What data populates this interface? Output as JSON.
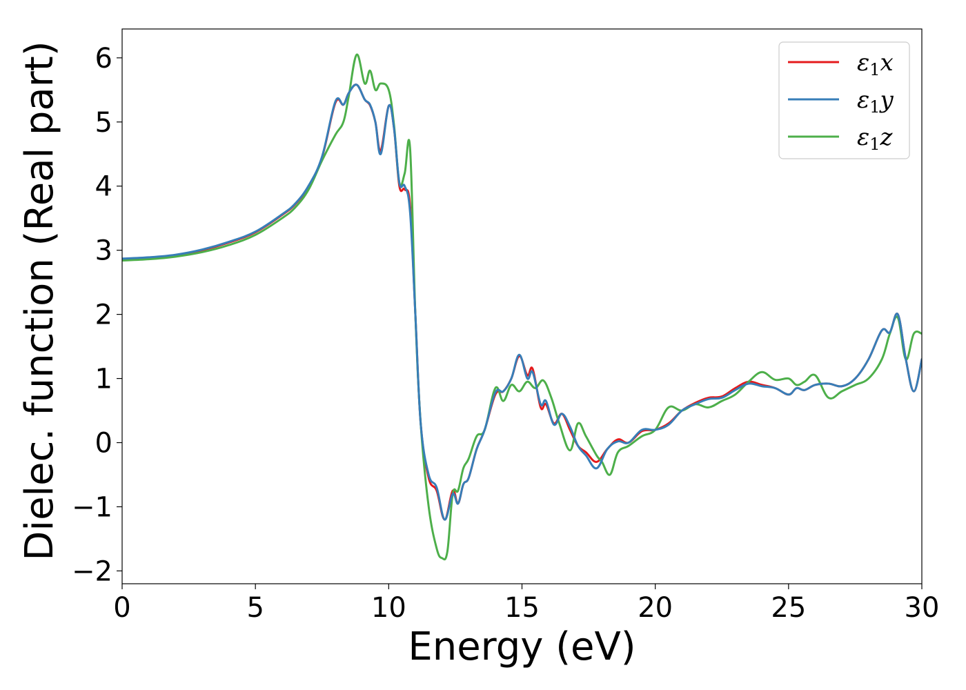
{
  "chart_data": {
    "type": "line",
    "xlabel": "Energy (eV)",
    "ylabel": "Dielec. function (Real part)",
    "xlim": [
      0,
      30
    ],
    "ylim": [
      -2.2,
      6.45
    ],
    "xticks": [
      0,
      5,
      10,
      15,
      20,
      25,
      30
    ],
    "xtick_labels": [
      "0",
      "5",
      "10",
      "15",
      "20",
      "25",
      "30"
    ],
    "yticks": [
      -2,
      -1,
      0,
      1,
      2,
      3,
      4,
      5,
      6
    ],
    "ytick_labels": [
      "−2",
      "−1",
      "0",
      "1",
      "2",
      "3",
      "4",
      "5",
      "6"
    ],
    "grid": false,
    "legend_position": "top-right",
    "series": [
      {
        "name": "ε₁x",
        "legend_base": "ε",
        "legend_sub": "1",
        "legend_var": "x",
        "color": "#e41a1c",
        "x": [
          0,
          1,
          2,
          3,
          4,
          5,
          6,
          6.5,
          7,
          7.5,
          8,
          8.3,
          8.5,
          8.8,
          9.1,
          9.3,
          9.5,
          9.7,
          10.0,
          10.2,
          10.4,
          10.6,
          10.8,
          11.0,
          11.2,
          11.5,
          11.8,
          12.1,
          12.4,
          12.6,
          12.8,
          13.0,
          13.3,
          13.6,
          14.0,
          14.3,
          14.6,
          14.9,
          15.2,
          15.4,
          15.7,
          15.9,
          16.2,
          16.5,
          16.8,
          17.1,
          17.4,
          17.8,
          18.2,
          18.6,
          19.0,
          19.5,
          20.0,
          20.5,
          21.0,
          21.5,
          22.0,
          22.5,
          23.0,
          23.5,
          24.0,
          24.5,
          25.0,
          25.3,
          25.6,
          26.0,
          26.5,
          27.0,
          27.5,
          28.0,
          28.5,
          28.8,
          29.1,
          29.4,
          29.7,
          30
        ],
        "y": [
          2.86,
          2.88,
          2.92,
          3.0,
          3.12,
          3.28,
          3.55,
          3.72,
          4.0,
          4.45,
          5.3,
          5.27,
          5.45,
          5.58,
          5.35,
          5.26,
          5.0,
          4.55,
          5.25,
          4.9,
          4.0,
          3.95,
          3.7,
          2.0,
          0.3,
          -0.55,
          -0.75,
          -1.2,
          -0.75,
          -0.95,
          -0.65,
          -0.55,
          -0.1,
          0.2,
          0.75,
          0.8,
          1.0,
          1.35,
          1.05,
          1.15,
          0.55,
          0.6,
          0.3,
          0.45,
          0.2,
          -0.05,
          -0.15,
          -0.3,
          -0.1,
          0.05,
          0.0,
          0.18,
          0.2,
          0.3,
          0.5,
          0.62,
          0.7,
          0.72,
          0.85,
          0.95,
          0.9,
          0.85,
          0.75,
          0.85,
          0.82,
          0.9,
          0.92,
          0.88,
          1.0,
          1.3,
          1.75,
          1.72,
          2.0,
          1.3,
          0.8,
          1.3
        ]
      },
      {
        "name": "ε₁y",
        "legend_base": "ε",
        "legend_sub": "1",
        "legend_var": "y",
        "color": "#377eb8",
        "x": [
          0,
          1,
          2,
          3,
          4,
          5,
          6,
          6.5,
          7,
          7.5,
          8,
          8.3,
          8.5,
          8.8,
          9.1,
          9.3,
          9.5,
          9.7,
          10.0,
          10.2,
          10.4,
          10.6,
          10.8,
          11.0,
          11.2,
          11.5,
          11.8,
          12.1,
          12.4,
          12.6,
          12.8,
          13.0,
          13.3,
          13.6,
          14.0,
          14.3,
          14.6,
          14.9,
          15.2,
          15.4,
          15.7,
          15.9,
          16.2,
          16.5,
          16.8,
          17.1,
          17.4,
          17.8,
          18.2,
          18.6,
          19.0,
          19.5,
          20.0,
          20.5,
          21.0,
          21.5,
          22.0,
          22.5,
          23.0,
          23.5,
          24.0,
          24.5,
          25.0,
          25.3,
          25.6,
          26.0,
          26.5,
          27.0,
          27.5,
          28.0,
          28.5,
          28.8,
          29.1,
          29.4,
          29.7,
          30
        ],
        "y": [
          2.87,
          2.89,
          2.93,
          3.01,
          3.13,
          3.29,
          3.56,
          3.73,
          4.01,
          4.46,
          5.32,
          5.27,
          5.45,
          5.58,
          5.35,
          5.27,
          5.0,
          4.5,
          5.25,
          4.9,
          4.05,
          4.0,
          3.6,
          2.0,
          0.3,
          -0.5,
          -0.7,
          -1.2,
          -0.8,
          -0.95,
          -0.65,
          -0.55,
          -0.1,
          0.2,
          0.78,
          0.8,
          1.0,
          1.37,
          1.0,
          1.1,
          0.6,
          0.65,
          0.28,
          0.45,
          0.25,
          -0.05,
          -0.2,
          -0.4,
          -0.1,
          0.02,
          0.0,
          0.2,
          0.2,
          0.28,
          0.5,
          0.6,
          0.68,
          0.7,
          0.82,
          0.92,
          0.88,
          0.85,
          0.75,
          0.85,
          0.82,
          0.9,
          0.92,
          0.88,
          1.0,
          1.3,
          1.75,
          1.72,
          2.0,
          1.3,
          0.8,
          1.3
        ]
      },
      {
        "name": "ε₁z",
        "legend_base": "ε",
        "legend_sub": "1",
        "legend_var": "z",
        "color": "#4daf4a",
        "x": [
          0,
          1,
          2,
          3,
          4,
          5,
          6,
          6.5,
          7,
          7.5,
          8,
          8.3,
          8.5,
          8.8,
          9.1,
          9.3,
          9.5,
          9.7,
          10.0,
          10.2,
          10.4,
          10.6,
          10.8,
          11.0,
          11.2,
          11.5,
          11.8,
          12.0,
          12.2,
          12.4,
          12.6,
          12.8,
          13.0,
          13.3,
          13.6,
          14.0,
          14.3,
          14.6,
          14.9,
          15.2,
          15.5,
          15.8,
          16.1,
          16.4,
          16.8,
          17.1,
          17.4,
          17.8,
          18.0,
          18.3,
          18.6,
          19.0,
          19.5,
          20.0,
          20.5,
          21.0,
          21.5,
          22.0,
          22.5,
          23.0,
          23.5,
          24.0,
          24.5,
          25.0,
          25.3,
          25.6,
          26.0,
          26.5,
          27.0,
          27.5,
          28.0,
          28.5,
          28.8,
          29.1,
          29.4,
          29.7,
          30
        ],
        "y": [
          2.84,
          2.86,
          2.9,
          2.97,
          3.08,
          3.24,
          3.5,
          3.67,
          3.95,
          4.4,
          4.8,
          5.0,
          5.4,
          6.05,
          5.6,
          5.8,
          5.5,
          5.6,
          5.5,
          4.95,
          4.05,
          4.2,
          4.6,
          2.0,
          0.3,
          -1.0,
          -1.65,
          -1.8,
          -1.7,
          -0.8,
          -0.75,
          -0.4,
          -0.25,
          0.1,
          0.2,
          0.85,
          0.65,
          0.9,
          0.8,
          0.95,
          0.85,
          0.97,
          0.7,
          0.3,
          -0.12,
          0.3,
          0.1,
          -0.2,
          -0.3,
          -0.5,
          -0.15,
          -0.05,
          0.1,
          0.2,
          0.55,
          0.5,
          0.6,
          0.55,
          0.65,
          0.75,
          0.95,
          1.1,
          0.98,
          1.0,
          0.9,
          0.95,
          1.05,
          0.7,
          0.8,
          0.9,
          1.0,
          1.3,
          1.7,
          1.95,
          1.3,
          1.7,
          1.7
        ]
      }
    ]
  }
}
